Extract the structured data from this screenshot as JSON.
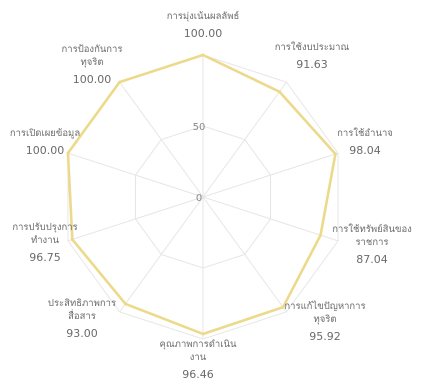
{
  "chart_data": {
    "type": "radar",
    "rmax": 100,
    "ticks": [
      0,
      50,
      100
    ],
    "series_color": "#ecd98a",
    "grid_color": "#e6e6e6",
    "categories": [
      {
        "label_lines": [
          "การมุ่งเน้นผลลัพธ์"
        ],
        "value": 100.0,
        "value_label": "100.00"
      },
      {
        "label_lines": [
          "การใช้งบประมาณ"
        ],
        "value": 91.63,
        "value_label": "91.63"
      },
      {
        "label_lines": [
          "การใช้อำนาจ"
        ],
        "value": 98.04,
        "value_label": "98.04"
      },
      {
        "label_lines": [
          "การใช้ทรัพย์สินของ",
          "ราชการ"
        ],
        "value": 87.04,
        "value_label": "87.04"
      },
      {
        "label_lines": [
          "การแก้ไขปัญหาการ",
          "ทุจริต"
        ],
        "value": 95.92,
        "value_label": "95.92"
      },
      {
        "label_lines": [
          "คุณภาพการดำเนิน",
          "งาน"
        ],
        "value": 96.46,
        "value_label": "96.46"
      },
      {
        "label_lines": [
          "ประสิทธิภาพการ",
          "สื่อสาร"
        ],
        "value": 93.0,
        "value_label": "93.00"
      },
      {
        "label_lines": [
          "การปรับปรุงการ",
          "ทำงาน"
        ],
        "value": 96.75,
        "value_label": "96.75"
      },
      {
        "label_lines": [
          "การเปิดเผยข้อมูล"
        ],
        "value": 100.0,
        "value_label": "100.00"
      },
      {
        "label_lines": [
          "การป้องกันการ",
          "ทุจริต"
        ],
        "value": 100.0,
        "value_label": "100.00"
      }
    ]
  }
}
